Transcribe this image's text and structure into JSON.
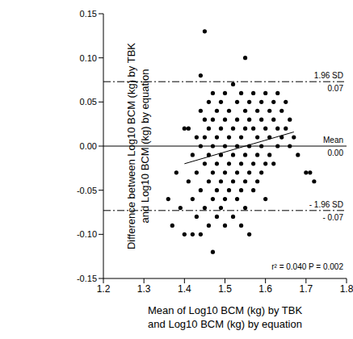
{
  "chart_data": {
    "type": "scatter",
    "x_label": [
      "Mean of Log10 BCM (kg) by TBK",
      "and Log10 BCM (kg) by equation"
    ],
    "y_label": [
      "Difference between Log10 BCM (kg) by TBK",
      "and Log10 BCM (kg) by equation"
    ],
    "xlim": [
      1.2,
      1.8
    ],
    "xticks": [
      1.2,
      1.3,
      1.4,
      1.5,
      1.6,
      1.7,
      1.8
    ],
    "ylim": [
      -0.15,
      0.15
    ],
    "yticks": [
      -0.15,
      {
        "value": -0.1,
        "label": "-0.10"
      },
      -0.05,
      {
        "value": 0,
        "label": "0.00"
      },
      0.05,
      {
        "value": 0.1,
        "label": "0.10"
      },
      0.15
    ],
    "grid": false,
    "color": "#000000",
    "marker": "circle",
    "x": [
      1.36,
      1.37,
      1.38,
      1.39,
      1.4,
      1.4,
      1.41,
      1.41,
      1.42,
      1.42,
      1.42,
      1.43,
      1.43,
      1.43,
      1.44,
      1.44,
      1.44,
      1.44,
      1.44,
      1.45,
      1.45,
      1.45,
      1.45,
      1.45,
      1.46,
      1.46,
      1.46,
      1.46,
      1.46,
      1.47,
      1.47,
      1.47,
      1.47,
      1.47,
      1.47,
      1.48,
      1.48,
      1.48,
      1.48,
      1.48,
      1.49,
      1.49,
      1.49,
      1.49,
      1.49,
      1.5,
      1.5,
      1.5,
      1.5,
      1.5,
      1.5,
      1.51,
      1.51,
      1.51,
      1.51,
      1.52,
      1.52,
      1.52,
      1.52,
      1.52,
      1.53,
      1.53,
      1.53,
      1.53,
      1.53,
      1.54,
      1.54,
      1.54,
      1.54,
      1.54,
      1.55,
      1.55,
      1.55,
      1.55,
      1.55,
      1.55,
      1.56,
      1.56,
      1.56,
      1.56,
      1.56,
      1.57,
      1.57,
      1.57,
      1.57,
      1.58,
      1.58,
      1.58,
      1.58,
      1.59,
      1.59,
      1.59,
      1.59,
      1.6,
      1.6,
      1.6,
      1.6,
      1.61,
      1.61,
      1.61,
      1.62,
      1.62,
      1.62,
      1.63,
      1.63,
      1.63,
      1.64,
      1.64,
      1.65,
      1.65,
      1.66,
      1.66,
      1.67,
      1.68,
      1.7,
      1.71,
      1.72
    ],
    "values": [
      -0.06,
      -0.09,
      -0.03,
      -0.07,
      -0.1,
      0.02,
      -0.04,
      0.02,
      -0.01,
      -0.06,
      -0.1,
      0.01,
      -0.03,
      -0.08,
      0.08,
      0.04,
      0.0,
      -0.05,
      -0.1,
      0.13,
      0.03,
      -0.02,
      -0.07,
      0.01,
      0.05,
      0.02,
      -0.01,
      -0.04,
      -0.09,
      0.06,
      0.03,
      0.0,
      -0.03,
      -0.06,
      -0.12,
      0.04,
      0.01,
      -0.02,
      -0.05,
      -0.08,
      0.05,
      0.02,
      -0.01,
      -0.04,
      -0.07,
      0.06,
      0.03,
      0.0,
      -0.03,
      -0.06,
      -0.09,
      0.04,
      0.01,
      -0.02,
      -0.05,
      0.07,
      0.02,
      -0.01,
      -0.04,
      -0.08,
      0.05,
      0.03,
      0.0,
      -0.03,
      -0.06,
      0.06,
      0.01,
      -0.02,
      -0.05,
      -0.09,
      0.1,
      0.04,
      0.02,
      -0.01,
      -0.04,
      -0.07,
      0.05,
      0.03,
      0.0,
      -0.03,
      -0.1,
      0.06,
      0.02,
      -0.02,
      -0.05,
      0.04,
      0.01,
      -0.01,
      -0.04,
      0.05,
      0.03,
      0.0,
      -0.03,
      0.06,
      0.02,
      -0.02,
      -0.06,
      0.04,
      0.01,
      -0.01,
      0.05,
      0.03,
      -0.02,
      0.06,
      0.02,
      0.0,
      0.04,
      0.01,
      0.05,
      0.02,
      0.03,
      0.0,
      0.01,
      -0.01,
      -0.03,
      -0.03,
      -0.04
    ],
    "reference_lines": [
      {
        "value": 0.073,
        "name": "1.96 SD",
        "label": "0.07",
        "line_style": "dashdot"
      },
      {
        "value": 0,
        "name": "Mean",
        "label": "0.00",
        "line_style": "solid"
      },
      {
        "value": -0.073,
        "name": "- 1.96 SD",
        "label": "- 0.07",
        "line_style": "dashdot"
      }
    ],
    "regression": {
      "x": [
        1.4,
        1.67
      ],
      "values": [
        -0.02,
        0.016
      ],
      "line_style": "solid"
    },
    "annotation": "r² = 0.040 P = 0.002"
  }
}
